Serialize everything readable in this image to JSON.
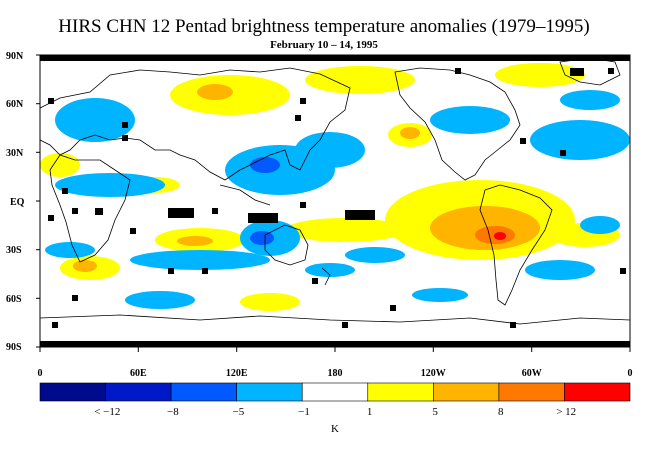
{
  "title": "HIRS CHN 12 Pentad brightness temperature anomalies (1979–1995)",
  "subtitle": "February 10 – 14, 1995",
  "lat_labels": [
    "90N",
    "60N",
    "30N",
    "EQ",
    "30S",
    "60S",
    "90S"
  ],
  "lon_labels": [
    "0",
    "60E",
    "120E",
    "180",
    "120W",
    "60W",
    "0"
  ],
  "colorbar": {
    "unit": "K",
    "labels": [
      "< −12",
      "−8",
      "−5",
      "−1",
      "1",
      "5",
      "8",
      "> 12"
    ],
    "colors": [
      "#000a8c",
      "#0019c8",
      "#005aff",
      "#00b4ff",
      "#ffffff",
      "#ffff00",
      "#ffb400",
      "#ff7800",
      "#ff0000"
    ]
  },
  "missing_color": "#000000"
}
